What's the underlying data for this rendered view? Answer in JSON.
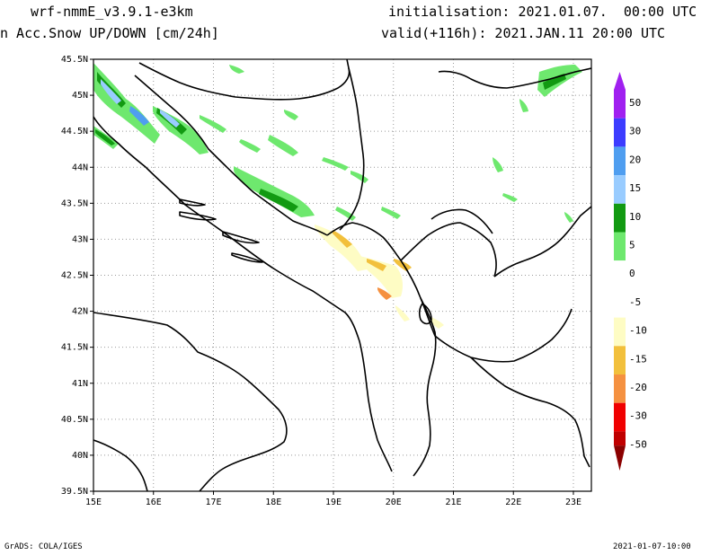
{
  "header": {
    "model": "wrf-nmmE_v3.9.1-e3km",
    "field": "n Acc.Snow UP/DOWN [cm/24h]",
    "init": "initialisation: 2021.01.07.  00:00 UTC",
    "valid": "valid(+116h): 2021.JAN.11 20:00 UTC"
  },
  "map": {
    "lat_labels": [
      "45.5N",
      "45N",
      "44.5N",
      "44N",
      "43.5N",
      "43N",
      "42.5N",
      "42N",
      "41.5N",
      "41N",
      "40.5N",
      "40N",
      "39.5N"
    ],
    "lon_labels": [
      "15E",
      "16E",
      "17E",
      "18E",
      "19E",
      "20E",
      "21E",
      "22E",
      "23E"
    ],
    "lat_range": [
      39.5,
      45.5
    ],
    "lon_range": [
      15,
      23.3
    ],
    "grid": "dotted"
  },
  "colorbar": {
    "levels": [
      {
        "label": "50",
        "color": "#a020f0"
      },
      {
        "label": "30",
        "color": "#3c3cff"
      },
      {
        "label": "20",
        "color": "#4f9ef0"
      },
      {
        "label": "15",
        "color": "#99ccff"
      },
      {
        "label": "10",
        "color": "#129a12"
      },
      {
        "label": "5",
        "color": "#6ee86e"
      },
      {
        "label": "0",
        "color": "#ffffff"
      },
      {
        "label": "-5",
        "color": "#ffffff"
      },
      {
        "label": "-10",
        "color": "#fefcc4"
      },
      {
        "label": "-15",
        "color": "#f2c03c"
      },
      {
        "label": "-20",
        "color": "#f59140"
      },
      {
        "label": "-30",
        "color": "#f00000"
      },
      {
        "label": "-50",
        "color": "#c00000"
      }
    ],
    "bottom_color": "#8b0000"
  },
  "footer": {
    "left": "GrADS: COLA/IGES",
    "right": "2021-01-07-10:00"
  }
}
